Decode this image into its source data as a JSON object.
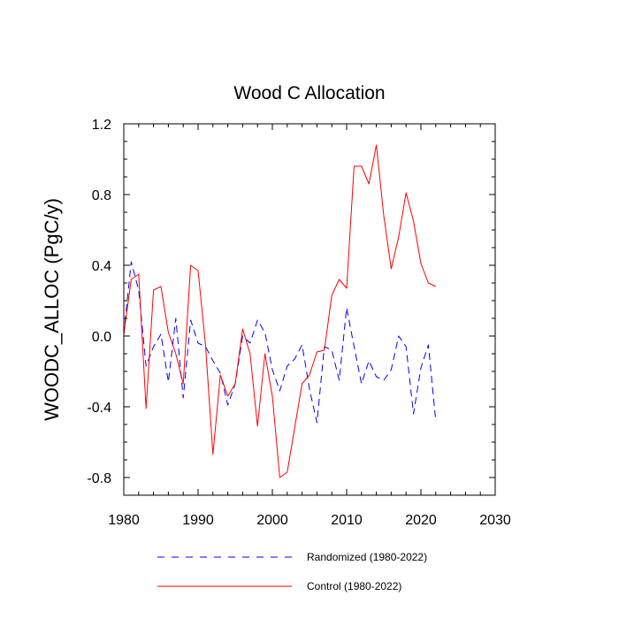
{
  "chart_data": {
    "type": "line",
    "title": "Wood C Allocation",
    "xlabel": "",
    "ylabel": "WOODC_ALLOC  (PgC/y)",
    "xlim": [
      1980,
      2030
    ],
    "ylim": [
      -0.9,
      1.2
    ],
    "xticks": [
      1980,
      1990,
      2000,
      2010,
      2020,
      2030
    ],
    "xtick_labels": [
      "1980",
      "1990",
      "2000",
      "2010",
      "2020",
      "2030"
    ],
    "yticks": [
      -0.8,
      -0.4,
      0.0,
      0.4,
      0.8,
      1.2
    ],
    "ytick_labels": [
      "-0.8",
      "-0.4",
      "0.0",
      "0.4",
      "0.8",
      "1.2"
    ],
    "legend_position": "bottom",
    "x": [
      1980,
      1981,
      1982,
      1983,
      1984,
      1985,
      1986,
      1987,
      1988,
      1989,
      1990,
      1991,
      1992,
      1993,
      1994,
      1995,
      1996,
      1997,
      1998,
      1999,
      2000,
      2001,
      2002,
      2003,
      2004,
      2005,
      2006,
      2007,
      2008,
      2009,
      2010,
      2011,
      2012,
      2013,
      2014,
      2015,
      2016,
      2017,
      2018,
      2019,
      2020,
      2021,
      2022
    ],
    "series": [
      {
        "name": "Randomized (1980-2022)",
        "color": "#0000ff",
        "style": "dashed",
        "values": [
          0.01,
          0.42,
          0.26,
          -0.17,
          -0.06,
          0.01,
          -0.26,
          0.1,
          -0.35,
          0.09,
          -0.04,
          -0.06,
          -0.14,
          -0.21,
          -0.39,
          -0.27,
          0.0,
          -0.04,
          0.09,
          0.02,
          -0.19,
          -0.31,
          -0.17,
          -0.13,
          -0.05,
          -0.3,
          -0.49,
          -0.06,
          -0.08,
          -0.25,
          0.16,
          -0.06,
          -0.27,
          -0.14,
          -0.23,
          -0.25,
          -0.19,
          -0.0,
          -0.06,
          -0.44,
          -0.18,
          -0.05,
          -0.48
        ]
      },
      {
        "name": "Control (1980-2022)",
        "color": "#ff0000",
        "style": "solid",
        "values": [
          0.01,
          0.32,
          0.35,
          -0.41,
          0.26,
          0.28,
          0.02,
          -0.1,
          -0.27,
          0.4,
          0.37,
          -0.05,
          -0.67,
          -0.22,
          -0.34,
          -0.27,
          0.04,
          -0.1,
          -0.51,
          -0.1,
          -0.34,
          -0.8,
          -0.77,
          -0.52,
          -0.27,
          -0.22,
          -0.09,
          -0.08,
          0.23,
          0.32,
          0.27,
          0.96,
          0.96,
          0.86,
          1.08,
          0.68,
          0.38,
          0.56,
          0.81,
          0.65,
          0.41,
          0.3,
          0.28
        ]
      }
    ]
  }
}
